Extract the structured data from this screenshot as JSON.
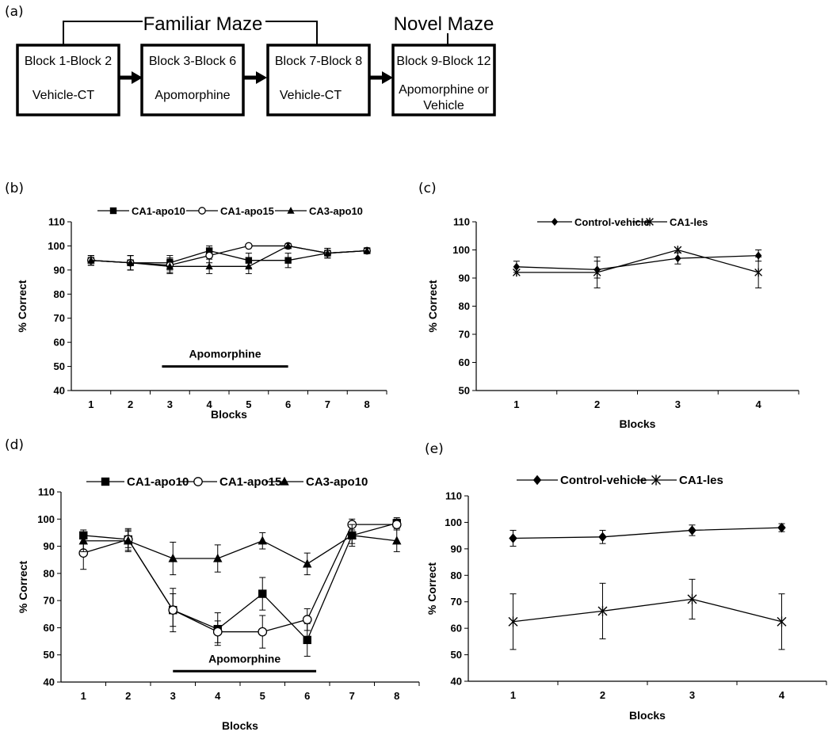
{
  "panel_labels": {
    "a": "(a)",
    "b": "(b)",
    "c": "(c)",
    "d": "(d)",
    "e": "(e)"
  },
  "flow": {
    "familiar_label": "Familiar Maze",
    "novel_label": "Novel Maze",
    "boxes": [
      {
        "line1": "Block 1-Block 2",
        "line2": "Vehicle-CT"
      },
      {
        "line1": "Block 3-Block 6",
        "line2": "Apomorphine"
      },
      {
        "line1": "Block 7-Block 8",
        "line2": "Vehicle-CT"
      },
      {
        "line1": "Block 9-Block 12",
        "line2": "Apomorphine or",
        "line3": "Vehicle"
      }
    ]
  },
  "chart_data": [
    {
      "id": "b",
      "type": "line",
      "xlabel": "Blocks",
      "ylabel": "% Correct",
      "categories": [
        "1",
        "2",
        "3",
        "4",
        "5",
        "6",
        "7",
        "8"
      ],
      "ylim": [
        40,
        110
      ],
      "yticks": [
        40,
        50,
        60,
        70,
        80,
        90,
        100,
        110
      ],
      "annotation": {
        "text": "Apomorphine",
        "x_from": 2.8,
        "x_to": 6.0,
        "y": 50
      },
      "series": [
        {
          "name": "CA1-apo10",
          "marker": "square",
          "values": [
            94,
            93,
            93,
            98,
            94,
            94,
            97,
            98
          ],
          "errors": [
            2,
            3,
            3,
            2,
            3,
            3,
            2,
            1
          ]
        },
        {
          "name": "CA1-apo15",
          "marker": "circle",
          "values": [
            94,
            93,
            92,
            96,
            100,
            100,
            97,
            98
          ],
          "errors": [
            2,
            3,
            3,
            3,
            0,
            0,
            2,
            1
          ]
        },
        {
          "name": "CA3-apo10",
          "marker": "triangle",
          "values": [
            94,
            93,
            91.5,
            91.5,
            91.5,
            100,
            97,
            98
          ],
          "errors": [
            2,
            3,
            3,
            3,
            3,
            1,
            2,
            1
          ]
        }
      ]
    },
    {
      "id": "c",
      "type": "line",
      "xlabel": "Blocks",
      "ylabel": "% Correct",
      "categories": [
        "1",
        "2",
        "3",
        "4"
      ],
      "ylim": [
        50,
        110
      ],
      "yticks": [
        50,
        60,
        70,
        80,
        90,
        100,
        110
      ],
      "series": [
        {
          "name": "Control-vehicle",
          "marker": "diamond",
          "values": [
            94,
            93,
            97,
            98
          ],
          "errors": [
            2,
            3,
            2,
            2
          ]
        },
        {
          "name": "CA1-les",
          "marker": "star",
          "values": [
            92,
            92,
            100,
            92
          ],
          "errors": [
            0,
            5.5,
            0,
            5.5
          ]
        }
      ]
    },
    {
      "id": "d",
      "type": "line",
      "xlabel": "Blocks",
      "ylabel": "% Correct",
      "categories": [
        "1",
        "2",
        "3",
        "4",
        "5",
        "6",
        "7",
        "8"
      ],
      "ylim": [
        40,
        110
      ],
      "yticks": [
        40,
        50,
        60,
        70,
        80,
        90,
        100,
        110
      ],
      "annotation": {
        "text": "Apomorphine",
        "x_from": 3.0,
        "x_to": 6.2,
        "y": 44
      },
      "series": [
        {
          "name": "CA1-apo10",
          "marker": "square",
          "values": [
            94,
            92.5,
            66.5,
            59.5,
            72.5,
            55.5,
            94,
            98.5
          ],
          "errors": [
            1,
            3,
            8,
            6,
            6,
            6,
            3,
            2
          ]
        },
        {
          "name": "CA1-apo15",
          "marker": "circle",
          "values": [
            87.5,
            92.5,
            66.5,
            58.5,
            58.5,
            63,
            98,
            98
          ],
          "errors": [
            6,
            4,
            6,
            4,
            6,
            4,
            2,
            2
          ]
        },
        {
          "name": "CA3-apo10",
          "marker": "triangle",
          "values": [
            92,
            92,
            85.5,
            85.5,
            92,
            83.5,
            94,
            92
          ],
          "errors": [
            4,
            4,
            6,
            5,
            3,
            4,
            4,
            4
          ]
        }
      ]
    },
    {
      "id": "e",
      "type": "line",
      "xlabel": "Blocks",
      "ylabel": "% Correct",
      "categories": [
        "1",
        "2",
        "3",
        "4"
      ],
      "ylim": [
        40,
        110
      ],
      "yticks": [
        40,
        50,
        60,
        70,
        80,
        90,
        100,
        110
      ],
      "series": [
        {
          "name": "Control-vehicle",
          "marker": "diamond",
          "values": [
            94,
            94.5,
            97,
            98
          ],
          "errors": [
            3,
            2.5,
            2,
            1.5
          ]
        },
        {
          "name": "CA1-les",
          "marker": "star",
          "values": [
            62.5,
            66.5,
            71,
            62.5
          ],
          "errors": [
            10.5,
            10.5,
            7.5,
            10.5
          ]
        }
      ]
    }
  ]
}
